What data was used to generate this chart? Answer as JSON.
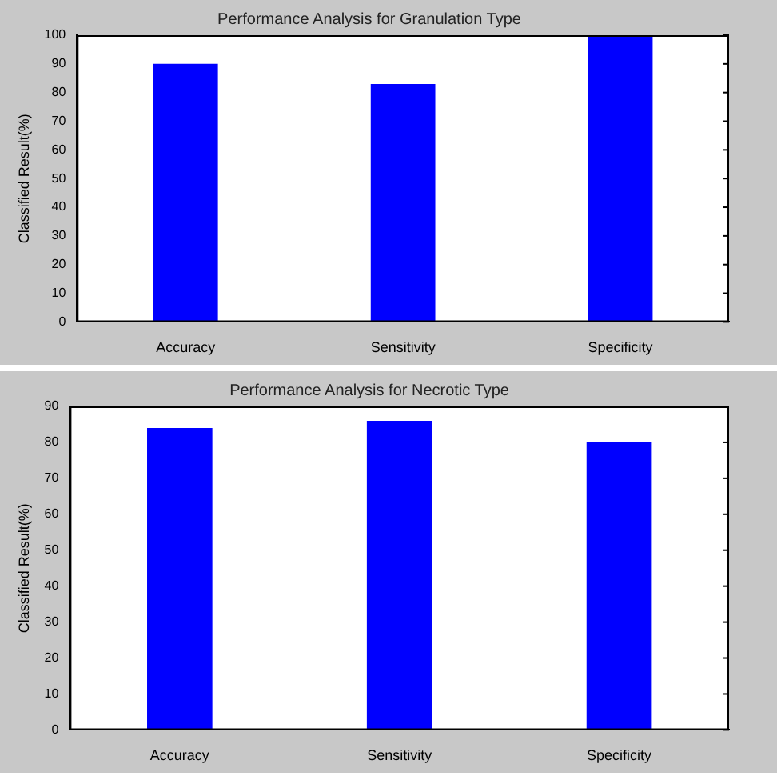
{
  "chart_data": [
    {
      "type": "bar",
      "title": "Performance Analysis for Granulation Type",
      "ylabel": "Classified Result(%)",
      "categories": [
        "Accuracy",
        "Sensitivity",
        "Specificity"
      ],
      "values": [
        90,
        83,
        100
      ],
      "color": "#0000ff",
      "ylim": [
        0,
        100
      ],
      "yticks": [
        0,
        10,
        20,
        30,
        40,
        50,
        60,
        70,
        80,
        90,
        100
      ],
      "grid": false,
      "legend": false
    },
    {
      "type": "bar",
      "title": "Performance Analysis for Necrotic Type",
      "ylabel": "Classified Result(%)",
      "categories": [
        "Accuracy",
        "Sensitivity",
        "Specificity"
      ],
      "values": [
        84,
        86,
        80
      ],
      "color": "#0000ff",
      "ylim": [
        0,
        90
      ],
      "yticks": [
        0,
        10,
        20,
        30,
        40,
        50,
        60,
        70,
        80,
        90
      ],
      "grid": false,
      "legend": false
    }
  ]
}
